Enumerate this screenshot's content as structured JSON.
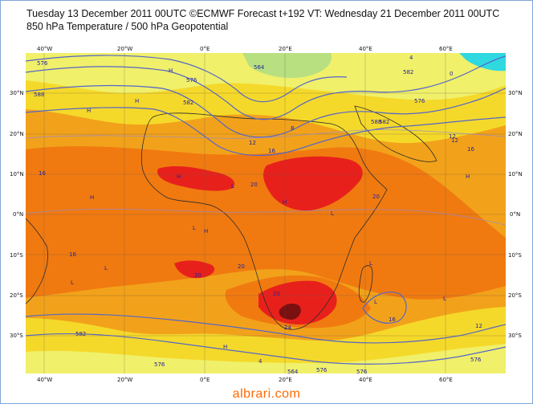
{
  "title_line1": "Tuesday 13 December 2011 00UTC ©ECMWF Forecast t+192 VT: Wednesday 21 December 2011 00UTC",
  "title_line2": "850 hPa Temperature / 500 hPa Geopotential",
  "watermark": "albrari.com",
  "colors": {
    "background_warm": "#f2a21a",
    "cool_yellow": "#f5d92a",
    "pale_yellow": "#f0f06a",
    "orange_hot": "#f07a10",
    "red_hot": "#e8201c",
    "dark_red": "#7a1010",
    "green_north": "#b8e080",
    "cyan_north": "#30d8e0",
    "contour_blue": "#5566c8"
  },
  "lon_labels": [
    "40°W",
    "20°W",
    "0°E",
    "20°E",
    "40°E",
    "60°E"
  ],
  "lat_labels_left": [
    "30°N",
    "20°N",
    "10°N",
    "0°N",
    "10°S",
    "20°S",
    "30°S"
  ],
  "lat_labels_right": [
    "30°N",
    "20°N",
    "10°N",
    "0°N",
    "10°S",
    "20°S",
    "30°S"
  ],
  "contour_labels": [
    "576",
    "564",
    "576",
    "582",
    "588",
    "576",
    "582",
    "588",
    "4",
    "8",
    "12",
    "16",
    "20",
    "20",
    "20",
    "20",
    "20",
    "24",
    "16",
    "16",
    "12",
    "582",
    "576",
    "582",
    "576",
    "564",
    "576",
    "576",
    "16",
    "16",
    "12",
    "12",
    "4",
    "0"
  ],
  "markers": [
    "H",
    "H",
    "H",
    "H",
    "H",
    "H",
    "H",
    "L",
    "L",
    "L",
    "L",
    "L",
    "L",
    "L",
    "L",
    "H",
    "H"
  ]
}
